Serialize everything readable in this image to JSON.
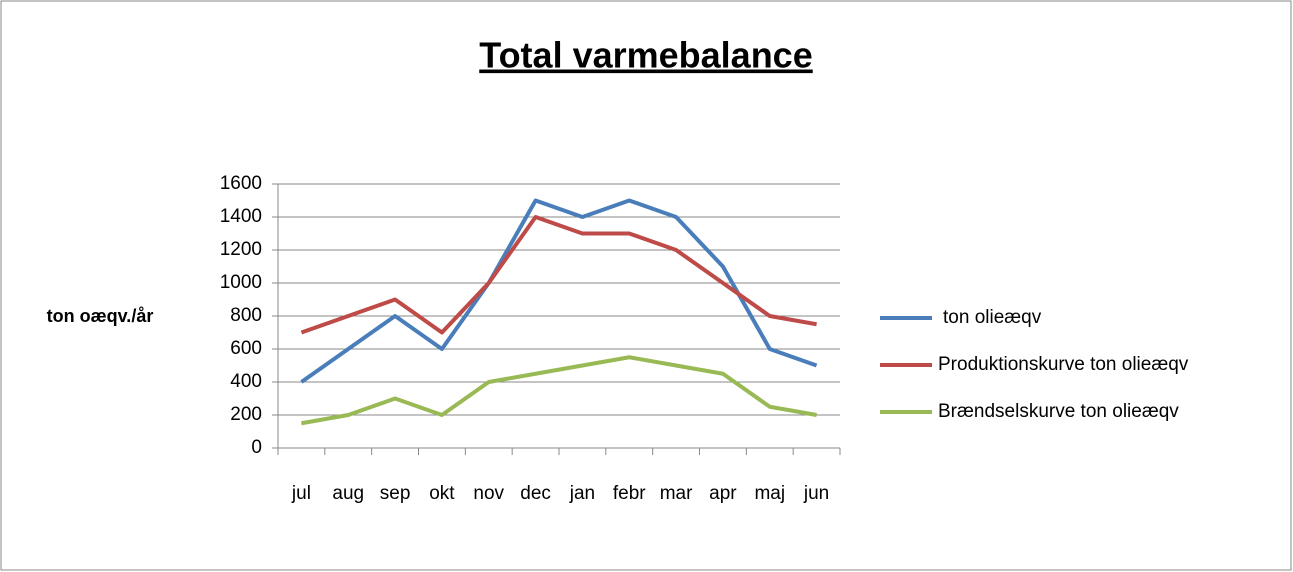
{
  "chart_data": {
    "type": "line",
    "title": "Total varmebalance",
    "ylabel": "ton oæqv./år",
    "categories": [
      "jul",
      "aug",
      "sep",
      "okt",
      "nov",
      "dec",
      "jan",
      "febr",
      "mar",
      "apr",
      "maj",
      "jun"
    ],
    "series": [
      {
        "name": "ton olieæqv",
        "color": "#4a7ebb",
        "values": [
          400,
          600,
          800,
          600,
          1000,
          1500,
          1400,
          1500,
          1400,
          1100,
          600,
          500
        ]
      },
      {
        "name": "Produktionskurve ton olieæqv",
        "color": "#be4b48",
        "values": [
          700,
          800,
          900,
          700,
          1000,
          1400,
          1300,
          1300,
          1200,
          1000,
          800,
          750
        ]
      },
      {
        "name": "Brændselskurve ton olieæqv",
        "color": "#98b954",
        "values": [
          150,
          200,
          300,
          200,
          400,
          450,
          500,
          550,
          500,
          450,
          250,
          200
        ]
      }
    ],
    "ylim": [
      0,
      1600
    ],
    "yticks": [
      0,
      200,
      400,
      600,
      800,
      1000,
      1200,
      1400,
      1600
    ],
    "grid": true,
    "legend": "right"
  }
}
